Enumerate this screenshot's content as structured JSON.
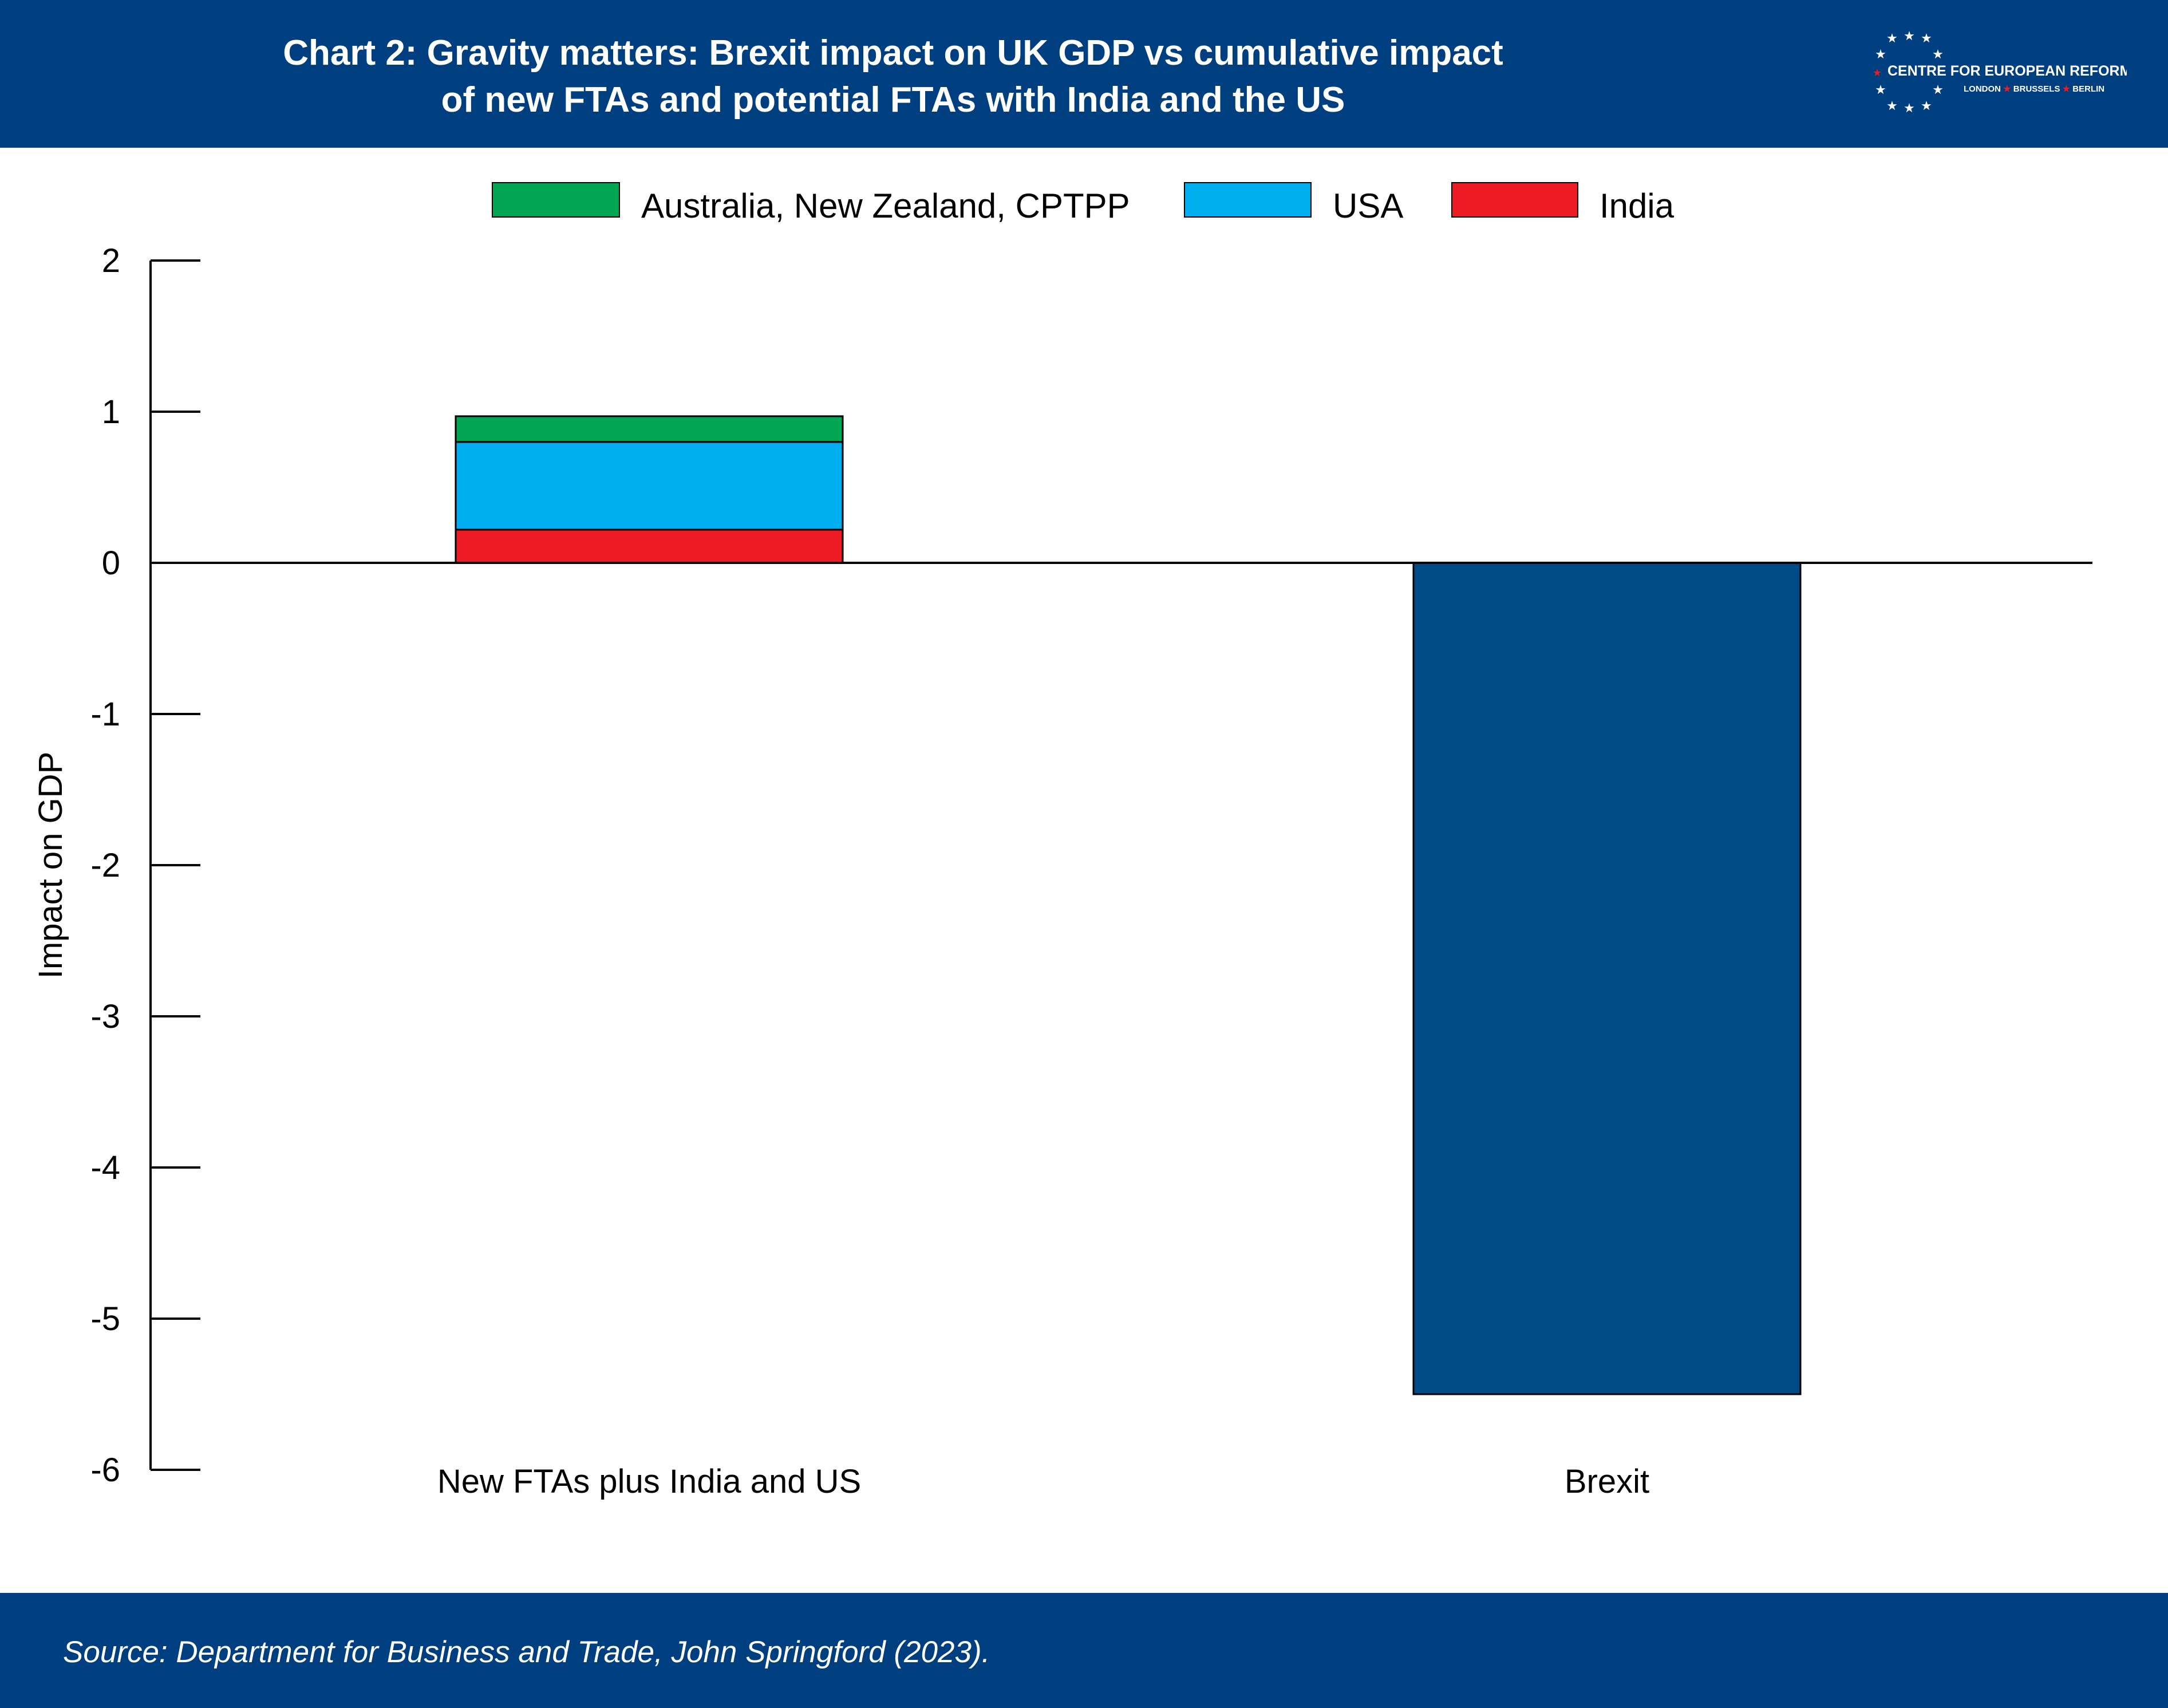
{
  "header": {
    "title_line1": "Chart 2: Gravity matters: Brexit impact on UK GDP vs cumulative impact",
    "title_line2": "of new FTAs and potential FTAs with India and the US",
    "logo_text": "CENTRE FOR EUROPEAN REFORM",
    "logo_sub_london": "LONDON",
    "logo_sub_brussels": "BRUSSELS",
    "logo_sub_berlin": "BERLIN"
  },
  "footer": {
    "source": "Source: Department for Business and Trade, John Springford (2023)."
  },
  "colors": {
    "brand_blue": "#003f7f",
    "australia_nz_cptpp": "#00a651",
    "usa": "#00aeef",
    "india": "#ed1c24",
    "brexit": "#004a85",
    "star_accent": "#ed1c24"
  },
  "chart_data": {
    "type": "bar",
    "stacked": true,
    "categories": [
      "New FTAs plus India and US",
      "Brexit"
    ],
    "series": [
      {
        "name": "India",
        "color": "#ed1c24",
        "values": [
          0.22,
          null
        ]
      },
      {
        "name": "USA",
        "color": "#00aeef",
        "values": [
          0.58,
          null
        ]
      },
      {
        "name": "Australia, New Zealand, CPTPP",
        "color": "#00a651",
        "values": [
          0.17,
          null
        ]
      },
      {
        "color": "#004a85",
        "values": [
          null,
          -5.5
        ]
      }
    ],
    "legend_order": [
      "Australia, New Zealand, CPTPP",
      "USA",
      "India"
    ],
    "legend_position": "top",
    "ylabel": "Impact on GDP",
    "xlabel": "",
    "ylim": [
      -6,
      2
    ],
    "yticks": [
      2,
      1,
      0,
      -1,
      -2,
      -3,
      -4,
      -5,
      -6
    ],
    "grid": false
  }
}
